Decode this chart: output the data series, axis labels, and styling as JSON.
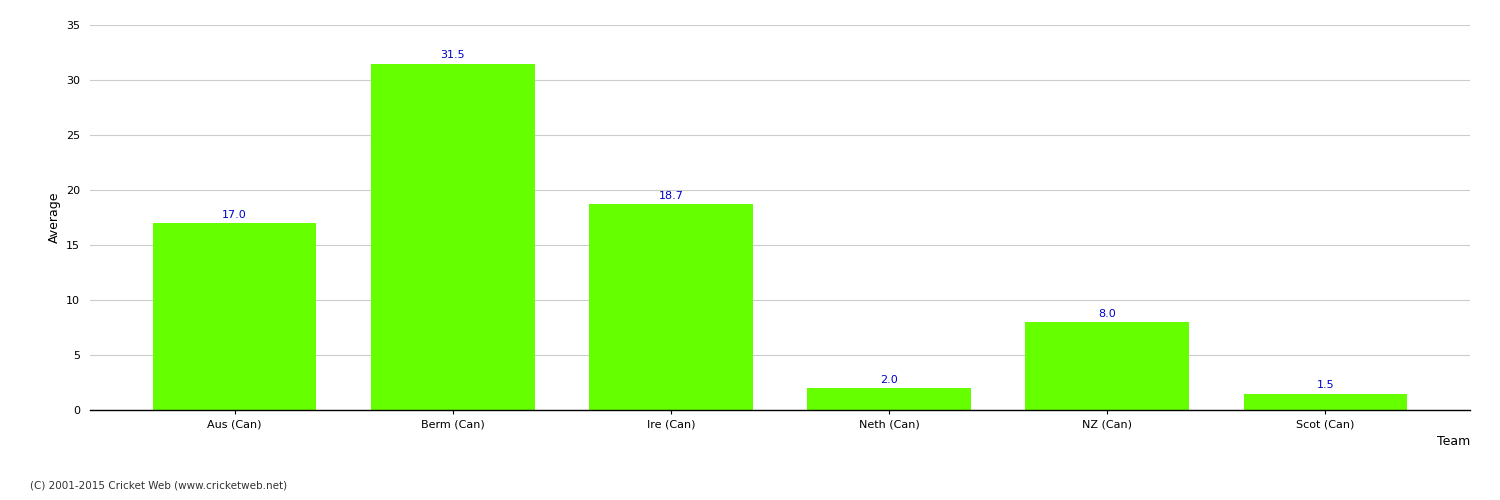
{
  "categories": [
    "Aus (Can)",
    "Berm (Can)",
    "Ire (Can)",
    "Neth (Can)",
    "NZ (Can)",
    "Scot (Can)"
  ],
  "values": [
    17.0,
    31.5,
    18.7,
    2.0,
    8.0,
    1.5
  ],
  "bar_color": "#66ff00",
  "bar_edge_color": "#66ff00",
  "value_color": "#0000cc",
  "xlabel": "Team",
  "ylabel": "Average",
  "ylim": [
    0,
    35
  ],
  "yticks": [
    0,
    5,
    10,
    15,
    20,
    25,
    30,
    35
  ],
  "grid_color": "#cccccc",
  "background_color": "#ffffff",
  "value_fontsize": 8,
  "axis_label_fontsize": 9,
  "tick_label_fontsize": 8,
  "footer_text": "(C) 2001-2015 Cricket Web (www.cricketweb.net)",
  "footer_fontsize": 7.5,
  "bar_width": 0.75,
  "spine_color": "#000000",
  "tick_color": "#000000"
}
